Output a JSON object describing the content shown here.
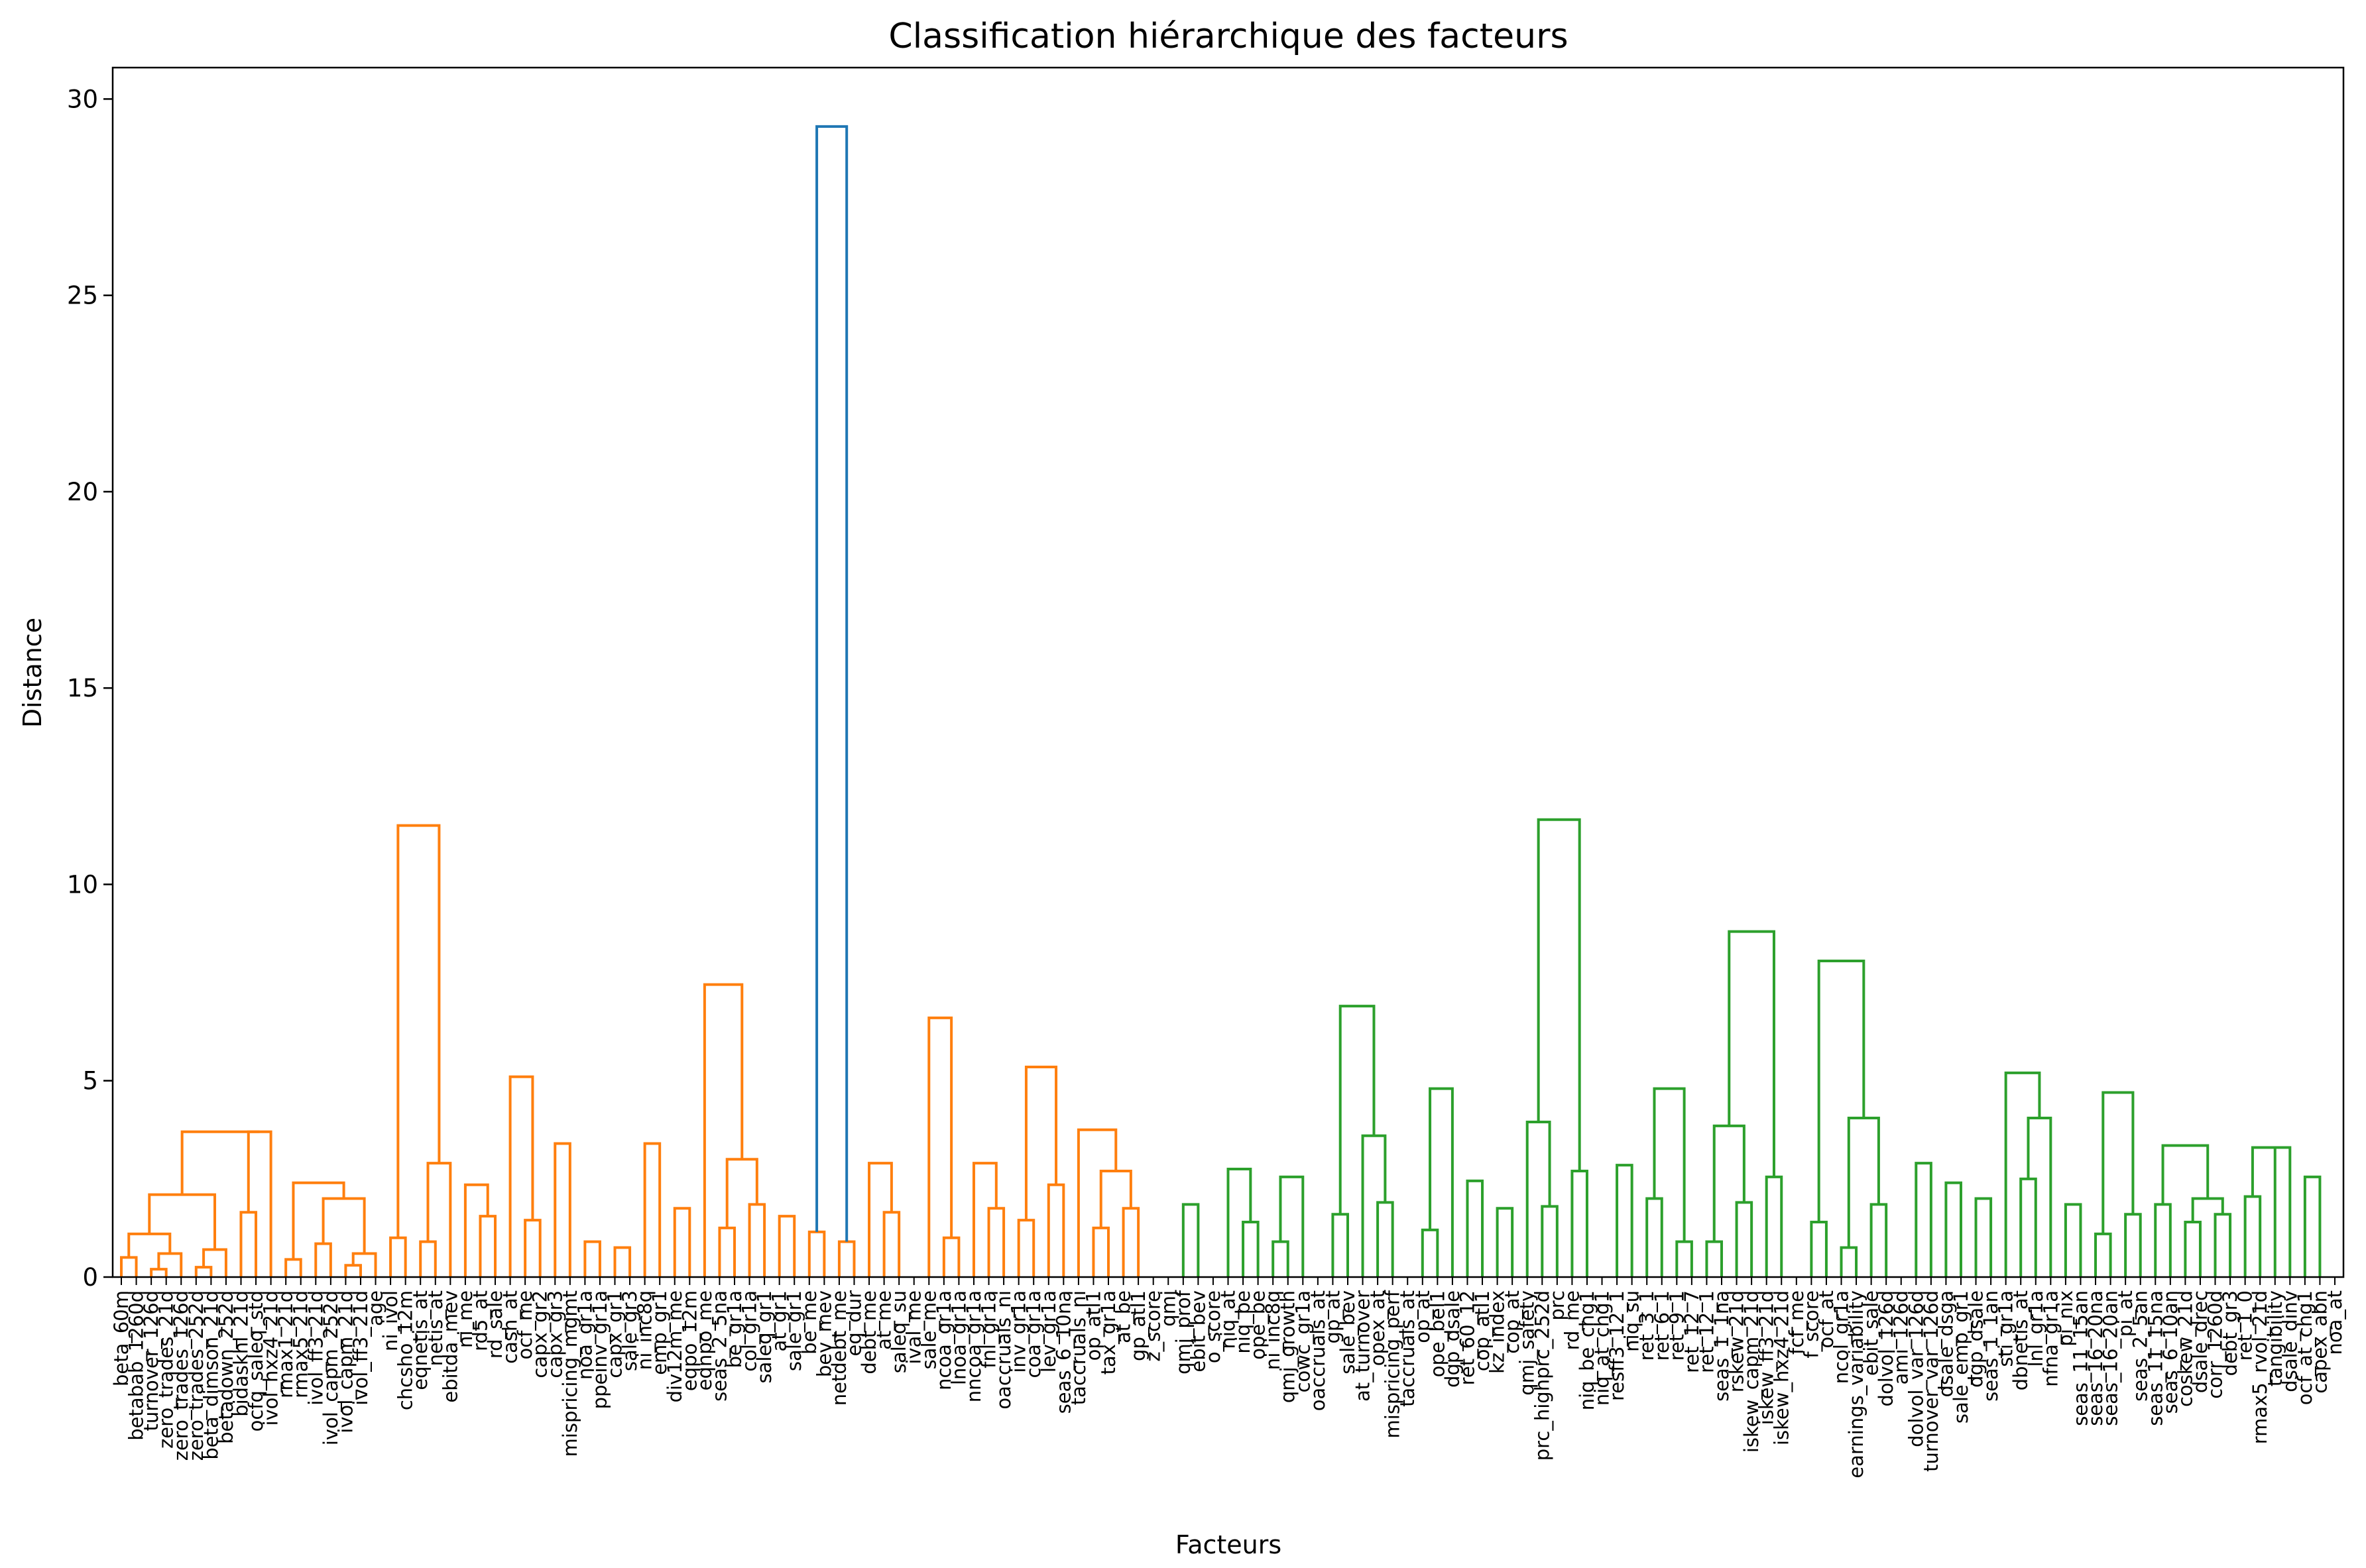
{
  "chart_data": {
    "type": "dendrogram",
    "title": "Classification hiérarchique des facteurs",
    "xlabel": "Facteurs",
    "ylabel": "Distance",
    "ylim": [
      0,
      30.8
    ],
    "yticks": [
      0,
      5,
      10,
      15,
      20,
      25,
      30
    ],
    "grid": false,
    "colors": {
      "orange": "#ff7f0e",
      "green": "#2ca02c",
      "blue": "#1f77b4"
    },
    "leaves": [
      "beta_60m",
      "betabab_1260d",
      "turnover_126d",
      "zero_trades_21d",
      "zero_trades_126d",
      "zero_trades_252d",
      "beta_dimson_21d",
      "betadown_252d",
      "bidaskhl_21d",
      "ocfq_saleq_std",
      "ivol_hxz4_21d",
      "rmax1_21d",
      "rmax5_21d",
      "ivol_ff3_21d",
      "ivol_capm_252d",
      "ivol_capm_21d",
      "ivol_ff3_21d",
      "age",
      "ni_ivol",
      "chcsho_12m",
      "eqnetis_at",
      "netis_at",
      "ebitda_mev",
      "ni_me",
      "rd5_at",
      "rd_sale",
      "cash_at",
      "ocf_me",
      "capx_gr2",
      "capx_gr3",
      "mispricing_mgmt",
      "noa_gr1a",
      "ppeinv_gr1a",
      "capx_gr1",
      "sale_gr3",
      "ni_inc8q",
      "emp_gr1",
      "div12m_me",
      "eqpo_12m",
      "eqnpo_me",
      "seas_2_5na",
      "be_gr1a",
      "col_gr1a",
      "saleq_gr1",
      "at_gr1",
      "sale_gr1",
      "be_me",
      "bev_mev",
      "netdebt_me",
      "eq_dur",
      "debt_me",
      "at_me",
      "saleq_su",
      "ival_me",
      "sale_me",
      "ncoa_gr1a",
      "lnoa_gr1a",
      "nncoa_gr1a",
      "fnl_gr1a",
      "oaccruals_ni",
      "inv_gr1a",
      "coa_gr1a",
      "lev_gr1a",
      "seas_6_10na",
      "taccruals_ni",
      "op_atl1",
      "tax_gr1a",
      "at_be",
      "gp_atl1",
      "z_score",
      "qmj",
      "qmj_prof",
      "ebit_bev",
      "o_score",
      "niq_at",
      "niq_be",
      "ope_be",
      "ni_inc8q",
      "qmj_growth",
      "cowc_gr1a",
      "oaccruals_at",
      "gp_at",
      "sale_bev",
      "at_turnover",
      "opex_at",
      "mispricing_perf",
      "taccruals_at",
      "op_at",
      "ope_bel1",
      "dgp_dsale",
      "ret_60_12",
      "cop_atl1",
      "kz_index",
      "cop_at",
      "qmj_safety",
      "prc_highprc_252d",
      "prc",
      "rd_me",
      "niq_be_chg1",
      "niq_at_chg1",
      "resff3_12_1",
      "niq_su",
      "ret_3_1",
      "ret_6_1",
      "ret_9_1",
      "ret_12_7",
      "ret_12_1",
      "seas_1_1na",
      "rskew_21d",
      "iskew_capm_21d",
      "iskew_ff3_21d",
      "iskew_hxz4_21d",
      "fcf_me",
      "f_score",
      "ocf_at",
      "ncol_gr1a",
      "earnings_variability",
      "ebit_sale",
      "dolvol_126d",
      "ami_126d",
      "dolvol_var_126d",
      "turnover_var_126d",
      "dsale_dsga",
      "sale_emp_gr1",
      "dgp_dsale",
      "seas_1_1an",
      "sti_gr1a",
      "dbnetis_at",
      "lnl_gr1a",
      "nfna_gr1a",
      "pi_nix",
      "seas_11_15an",
      "seas_16_20na",
      "seas_16_20an",
      "pi_at",
      "seas_2_5an",
      "seas_11_15na",
      "seas_6_10an",
      "coskew_21d",
      "dsale_drec",
      "corr_1260d",
      "debt_gr3",
      "ret_1_0",
      "rmax5_rvol_21d",
      "tangibility",
      "dsale_dinv",
      "ocf_at_chg1",
      "capex_abn",
      "noa_at"
    ],
    "links": [
      [
        0.0,
        0.5,
        "o"
      ],
      [
        1.0,
        0.2,
        "o"
      ],
      [
        3.0,
        0.6,
        "o"
      ],
      [
        4.0,
        0.25,
        "o"
      ],
      [
        2.5,
        1.1,
        "o"
      ],
      [
        2.2,
        0.7,
        "o"
      ],
      [
        1.4,
        2.1,
        "o"
      ],
      [
        8.0,
        1.65,
        "o"
      ],
      [
        12.0,
        0.45,
        "o"
      ],
      [
        13.5,
        0.85,
        "o"
      ],
      [
        15.0,
        0.3,
        "o"
      ],
      [
        16.5,
        0.6,
        "o"
      ],
      [
        15.0,
        2.0,
        "o"
      ],
      [
        12.0,
        2.4,
        "o"
      ],
      [
        10.0,
        3.7,
        "o"
      ],
      [
        4.2,
        3.7,
        "o"
      ],
      [
        19.0,
        1.0,
        "o"
      ],
      [
        21.0,
        0.9,
        "o"
      ],
      [
        25.0,
        1.55,
        "o"
      ],
      [
        24.0,
        2.35,
        "o"
      ],
      [
        22.0,
        2.9,
        "o"
      ],
      [
        28.0,
        1.45,
        "o"
      ],
      [
        31.5,
        0.9,
        "o"
      ],
      [
        33.5,
        0.75,
        "o"
      ],
      [
        29.0,
        3.4,
        "o"
      ],
      [
        38.0,
        1.75,
        "o"
      ],
      [
        40.5,
        1.25,
        "o"
      ],
      [
        43.0,
        1.85,
        "o"
      ],
      [
        44.5,
        1.55,
        "o"
      ],
      [
        42.0,
        3.0,
        "o"
      ],
      [
        35.0,
        3.4,
        "o"
      ],
      [
        26.0,
        5.1,
        "o"
      ],
      [
        47.0,
        1.15,
        "o"
      ],
      [
        49.0,
        0.9,
        "o"
      ],
      [
        52.0,
        1.65,
        "o"
      ],
      [
        50.5,
        2.9,
        "o"
      ],
      [
        56.0,
        1.0,
        "o"
      ],
      [
        58.5,
        1.75,
        "o"
      ],
      [
        57.5,
        2.9,
        "o"
      ],
      [
        61.0,
        1.45,
        "o"
      ],
      [
        63.0,
        2.35,
        "o"
      ],
      [
        66.0,
        1.25,
        "o"
      ],
      [
        67.5,
        1.75,
        "o"
      ],
      [
        67.0,
        2.7,
        "o"
      ],
      [
        64.5,
        3.75,
        "o"
      ],
      [
        62.0,
        5.35,
        "o"
      ],
      [
        55.0,
        6.6,
        "o"
      ],
      [
        40.0,
        7.45,
        "o"
      ],
      [
        20.0,
        11.5,
        "o"
      ],
      [
        72.0,
        1.85,
        "g"
      ],
      [
        76.0,
        1.4,
        "g"
      ],
      [
        78.0,
        0.9,
        "g"
      ],
      [
        78.5,
        2.55,
        "g"
      ],
      [
        75.0,
        2.75,
        "g"
      ],
      [
        82.0,
        1.6,
        "g"
      ],
      [
        85.0,
        1.9,
        "g"
      ],
      [
        87.5,
        1.2,
        "g"
      ],
      [
        84.0,
        3.6,
        "g"
      ],
      [
        91.0,
        2.45,
        "g"
      ],
      [
        93.0,
        1.75,
        "g"
      ],
      [
        96.0,
        1.8,
        "g"
      ],
      [
        97.5,
        2.7,
        "g"
      ],
      [
        95.0,
        3.95,
        "g"
      ],
      [
        88.0,
        4.8,
        "g"
      ],
      [
        82.0,
        6.9,
        "g"
      ],
      [
        101.0,
        2.85,
        "g"
      ],
      [
        103.0,
        2.0,
        "g"
      ],
      [
        105.0,
        0.9,
        "g"
      ],
      [
        107.0,
        0.9,
        "g"
      ],
      [
        109.0,
        1.9,
        "g"
      ],
      [
        110.5,
        2.55,
        "g"
      ],
      [
        107.5,
        3.85,
        "g"
      ],
      [
        103.0,
        4.8,
        "g"
      ],
      [
        114.0,
        1.4,
        "g"
      ],
      [
        115.5,
        0.75,
        "g"
      ],
      [
        118.0,
        1.85,
        "g"
      ],
      [
        121.0,
        2.9,
        "g"
      ],
      [
        121.5,
        2.4,
        "g"
      ],
      [
        117.0,
        4.05,
        "g"
      ],
      [
        125.0,
        2.0,
        "g"
      ],
      [
        128.0,
        2.5,
        "g"
      ],
      [
        130.5,
        1.85,
        "g"
      ],
      [
        131.5,
        1.1,
        "g"
      ],
      [
        128.5,
        4.05,
        "g"
      ],
      [
        136.5,
        1.85,
        "g"
      ],
      [
        139.0,
        1.4,
        "g"
      ],
      [
        141.0,
        1.6,
        "g"
      ],
      [
        143.0,
        2.05,
        "g"
      ],
      [
        145.0,
        3.3,
        "g"
      ],
      [
        146.5,
        2.55,
        "g"
      ],
      [
        149.0,
        2.0,
        "g"
      ],
      [
        151.0,
        1.6,
        "g"
      ],
      [
        143.0,
        3.3,
        "g"
      ],
      [
        138.0,
        3.35,
        "g"
      ],
      [
        133.0,
        4.7,
        "g"
      ],
      [
        127.0,
        5.2,
        "g"
      ],
      [
        115.0,
        8.05,
        "g"
      ],
      [
        109.0,
        8.8,
        "g"
      ],
      [
        96.0,
        11.65,
        "g"
      ],
      [
        48.0,
        29.3,
        "b"
      ]
    ]
  }
}
